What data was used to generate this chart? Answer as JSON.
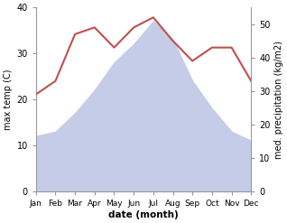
{
  "months": [
    "Jan",
    "Feb",
    "Mar",
    "Apr",
    "May",
    "Jun",
    "Jul",
    "Aug",
    "Sep",
    "Oct",
    "Nov",
    "Dec"
  ],
  "temp": [
    12,
    13,
    17,
    22,
    28,
    32,
    37,
    33,
    24,
    18,
    13,
    11
  ],
  "precip": [
    29,
    33,
    47,
    49,
    43,
    49,
    52,
    45,
    39,
    43,
    43,
    33
  ],
  "temp_fill_color": "#c5cce8",
  "precip_color": "#c0504d",
  "ylabel_left": "max temp (C)",
  "ylabel_right": "med. precipitation (kg/m2)",
  "xlabel": "date (month)",
  "ylim_left": [
    0,
    40
  ],
  "ylim_right": [
    0,
    55
  ],
  "yticks_left": [
    0,
    10,
    20,
    30,
    40
  ],
  "yticks_right": [
    0,
    10,
    20,
    30,
    40,
    50
  ],
  "background_color": "#ffffff",
  "spine_color": "#999999"
}
